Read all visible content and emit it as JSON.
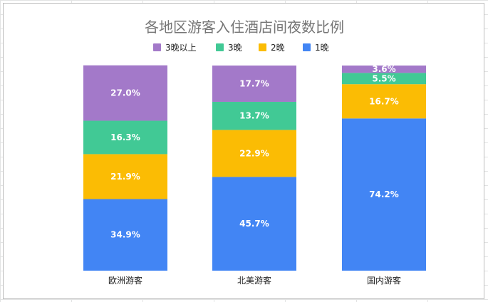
{
  "chart_data": {
    "type": "bar",
    "stacked": true,
    "normalized": true,
    "title": "各地区游客入住酒店间夜数比例",
    "xlabel": "",
    "ylabel": "",
    "ylim": [
      0,
      100
    ],
    "grid": false,
    "legend_position": "top",
    "categories": [
      "欧洲游客",
      "北美游客",
      "国内游客"
    ],
    "series": [
      {
        "name": "1晚",
        "color": "#4285f4",
        "values": [
          34.9,
          45.7,
          74.2
        ],
        "labels": [
          "34.9%",
          "45.7%",
          "74.2%"
        ]
      },
      {
        "name": "2晚",
        "color": "#fbbc04",
        "values": [
          21.9,
          22.9,
          16.7
        ],
        "labels": [
          "21.9%",
          "22.9%",
          "16.7%"
        ]
      },
      {
        "name": "3晚",
        "color": "#41c995",
        "values": [
          16.3,
          13.7,
          5.5
        ],
        "labels": [
          "16.3%",
          "13.7%",
          "5.5%"
        ]
      },
      {
        "name": "3晚以上",
        "color": "#a379c9",
        "values": [
          27.0,
          17.7,
          3.6
        ],
        "labels": [
          "27.0%",
          "17.7%",
          "3.6%"
        ]
      }
    ],
    "legend_order": [
      "3晚以上",
      "3晚",
      "2晚",
      "1晚"
    ]
  }
}
